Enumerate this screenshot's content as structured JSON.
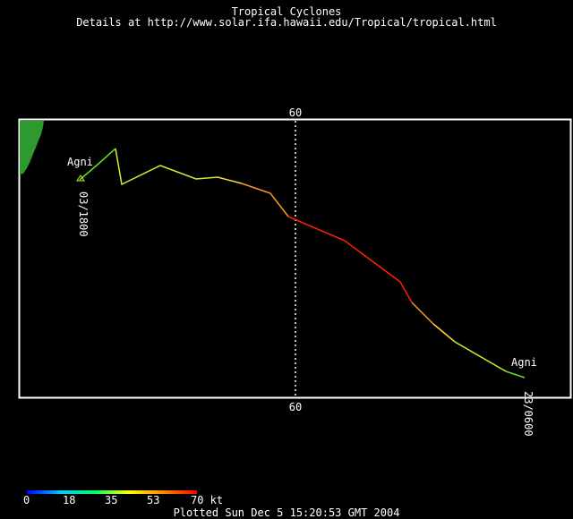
{
  "header": {
    "title": "Tropical Cyclones",
    "subtitle": "Details at http://www.solar.ifa.hawaii.edu/Tropical/tropical.html"
  },
  "map": {
    "longitude_line_label_top": "60",
    "longitude_line_label_bottom": "60",
    "land_color": "#2e9a2e",
    "track_colors": {
      "green": "#66dd22",
      "yellow_green": "#ccee33",
      "yellow": "#ffdd33",
      "orange": "#ff9922",
      "red": "#ff2200"
    }
  },
  "storm": {
    "name": "Agni",
    "start_label": "Agni",
    "end_label": "Agni",
    "start_time": "03/1800",
    "end_time": "23/0600"
  },
  "legend": {
    "ticks": [
      "0",
      "18",
      "35",
      "53",
      "70 kt"
    ],
    "gradient": [
      "#0000ff",
      "#00ccff",
      "#00ff66",
      "#ffff00",
      "#ff8800",
      "#ff0000"
    ]
  },
  "footer": {
    "plotted": "Plotted Sun Dec 5 15:20:53 GMT 2004"
  }
}
